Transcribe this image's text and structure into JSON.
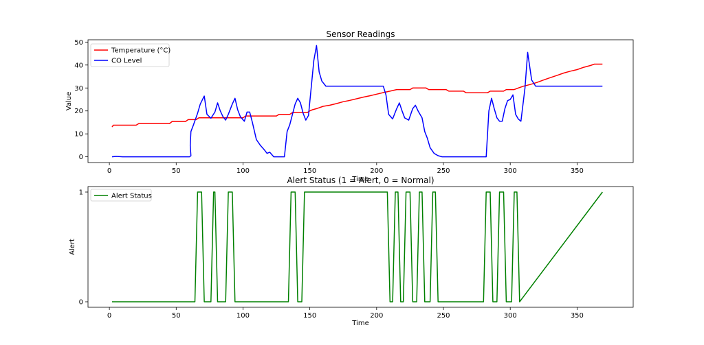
{
  "chart_data": [
    {
      "type": "line",
      "title": "Sensor Readings",
      "xlabel": "Time",
      "ylabel": "Value",
      "xlim": [
        -16,
        392
      ],
      "ylim": [
        -2.5,
        51
      ],
      "xticks": [
        0,
        50,
        100,
        150,
        200,
        250,
        300,
        350
      ],
      "yticks": [
        0,
        10,
        20,
        30,
        40,
        50
      ],
      "grid": false,
      "legend_position": "upper-left",
      "series": [
        {
          "name": "Temperature (°C)",
          "color": "#ff0000",
          "points": [
            [
              2,
              13
            ],
            [
              3,
              13.8
            ],
            [
              20,
              13.8
            ],
            [
              22,
              14.5
            ],
            [
              45,
              14.5
            ],
            [
              47,
              15.4
            ],
            [
              57,
              15.4
            ],
            [
              59,
              16.2
            ],
            [
              65,
              16.2
            ],
            [
              67,
              17
            ],
            [
              100,
              17
            ],
            [
              102,
              17.8
            ],
            [
              125,
              17.8
            ],
            [
              127,
              18.5
            ],
            [
              135,
              18.5
            ],
            [
              137,
              19.3
            ],
            [
              148,
              19.3
            ],
            [
              150,
              20
            ],
            [
              152,
              20.5
            ],
            [
              155,
              21
            ],
            [
              160,
              22
            ],
            [
              165,
              22.5
            ],
            [
              170,
              23.2
            ],
            [
              175,
              24
            ],
            [
              180,
              24.6
            ],
            [
              185,
              25.3
            ],
            [
              190,
              26
            ],
            [
              195,
              26.6
            ],
            [
              200,
              27.3
            ],
            [
              205,
              28
            ],
            [
              210,
              28.6
            ],
            [
              215,
              29.3
            ],
            [
              225,
              29.3
            ],
            [
              227,
              30
            ],
            [
              237,
              30
            ],
            [
              239,
              29.3
            ],
            [
              252,
              29.3
            ],
            [
              254,
              28.6
            ],
            [
              265,
              28.6
            ],
            [
              267,
              27.9
            ],
            [
              283,
              27.9
            ],
            [
              285,
              28.6
            ],
            [
              295,
              28.6
            ],
            [
              297,
              29.3
            ],
            [
              303,
              29.3
            ],
            [
              306,
              30
            ],
            [
              310,
              30.8
            ],
            [
              315,
              31.5
            ],
            [
              320,
              32.4
            ],
            [
              325,
              33.5
            ],
            [
              330,
              34.5
            ],
            [
              335,
              35.5
            ],
            [
              340,
              36.5
            ],
            [
              345,
              37.3
            ],
            [
              350,
              38
            ],
            [
              355,
              39
            ],
            [
              360,
              39.8
            ],
            [
              363,
              40.4
            ],
            [
              369,
              40.4
            ]
          ]
        },
        {
          "name": "CO Level",
          "color": "#0000ff",
          "points": [
            [
              2,
              0
            ],
            [
              5,
              0.2
            ],
            [
              10,
              0
            ],
            [
              40,
              0
            ],
            [
              58,
              0
            ],
            [
              60,
              0
            ],
            [
              61,
              0.5
            ],
            [
              60.5,
              5
            ],
            [
              61,
              11
            ],
            [
              63,
              14
            ],
            [
              66,
              19
            ],
            [
              68,
              23
            ],
            [
              71,
              26.5
            ],
            [
              73,
              18.5
            ],
            [
              76,
              16.8
            ],
            [
              79,
              19.5
            ],
            [
              81,
              23.5
            ],
            [
              83,
              20
            ],
            [
              85,
              17.5
            ],
            [
              87,
              16
            ],
            [
              89,
              18.5
            ],
            [
              92,
              23
            ],
            [
              94,
              25.5
            ],
            [
              96,
              20.5
            ],
            [
              98,
              17.5
            ],
            [
              101,
              15.5
            ],
            [
              103,
              19.5
            ],
            [
              105,
              19.5
            ],
            [
              107,
              15
            ],
            [
              110,
              7.5
            ],
            [
              113,
              5
            ],
            [
              116,
              3
            ],
            [
              118,
              1.5
            ],
            [
              120,
              2
            ],
            [
              123,
              0
            ],
            [
              127,
              0
            ],
            [
              131,
              0
            ],
            [
              133,
              11
            ],
            [
              135,
              14
            ],
            [
              139,
              23
            ],
            [
              141,
              25.5
            ],
            [
              143,
              23.5
            ],
            [
              145,
              19
            ],
            [
              147,
              16
            ],
            [
              149,
              18
            ],
            [
              151,
              30
            ],
            [
              153,
              42
            ],
            [
              155,
              48.5
            ],
            [
              157,
              37
            ],
            [
              159,
              33
            ],
            [
              162,
              30.8
            ],
            [
              164,
              30.8
            ],
            [
              205,
              30.8
            ],
            [
              207,
              27
            ],
            [
              209,
              18.5
            ],
            [
              212,
              16.5
            ],
            [
              215,
              21
            ],
            [
              217,
              23.5
            ],
            [
              219,
              20
            ],
            [
              221,
              17
            ],
            [
              224,
              16
            ],
            [
              227,
              21
            ],
            [
              229,
              22.5
            ],
            [
              231,
              20
            ],
            [
              234,
              17
            ],
            [
              236,
              11
            ],
            [
              238,
              8
            ],
            [
              240,
              4
            ],
            [
              243,
              1.5
            ],
            [
              246,
              0.5
            ],
            [
              249,
              0
            ],
            [
              282,
              0
            ],
            [
              284,
              20
            ],
            [
              286,
              25.5
            ],
            [
              288,
              21
            ],
            [
              290,
              17
            ],
            [
              292,
              15.5
            ],
            [
              294,
              15.5
            ],
            [
              296,
              21
            ],
            [
              298,
              24.5
            ],
            [
              300,
              25
            ],
            [
              302,
              27
            ],
            [
              304,
              18.5
            ],
            [
              306,
              16.5
            ],
            [
              308,
              15.5
            ],
            [
              311,
              30
            ],
            [
              313,
              45.5
            ],
            [
              316,
              33.5
            ],
            [
              319,
              30.8
            ],
            [
              369,
              30.8
            ]
          ]
        }
      ]
    },
    {
      "type": "line",
      "title": "Alert Status (1 = Alert, 0 = Normal)",
      "xlabel": "Time",
      "ylabel": "Alert",
      "xlim": [
        -16,
        392
      ],
      "ylim": [
        -0.05,
        1.05
      ],
      "xticks": [
        0,
        50,
        100,
        150,
        200,
        250,
        300,
        350
      ],
      "yticks": [
        0,
        1
      ],
      "grid": false,
      "legend_position": "upper-left",
      "series": [
        {
          "name": "Alert Status",
          "color": "#008000",
          "points": [
            [
              2,
              0
            ],
            [
              64,
              0
            ],
            [
              66,
              1
            ],
            [
              69,
              1
            ],
            [
              71,
              0
            ],
            [
              76,
              0
            ],
            [
              78,
              1
            ],
            [
              79,
              1
            ],
            [
              81,
              0
            ],
            [
              87,
              0
            ],
            [
              89,
              1
            ],
            [
              92,
              1
            ],
            [
              94,
              0
            ],
            [
              134,
              0
            ],
            [
              136,
              1
            ],
            [
              139,
              1
            ],
            [
              141,
              0
            ],
            [
              144,
              0
            ],
            [
              146,
              1
            ],
            [
              208,
              1
            ],
            [
              210,
              0
            ],
            [
              212,
              0
            ],
            [
              214,
              1
            ],
            [
              216,
              1
            ],
            [
              218,
              0
            ],
            [
              220,
              0
            ],
            [
              222,
              1
            ],
            [
              225,
              1
            ],
            [
              227,
              0
            ],
            [
              230,
              0
            ],
            [
              232,
              1
            ],
            [
              234,
              1
            ],
            [
              236,
              0
            ],
            [
              240,
              0
            ],
            [
              242,
              1
            ],
            [
              244,
              1
            ],
            [
              246,
              0
            ],
            [
              280,
              0
            ],
            [
              282,
              1
            ],
            [
              285,
              1
            ],
            [
              287,
              0
            ],
            [
              290,
              0
            ],
            [
              292,
              1
            ],
            [
              295,
              1
            ],
            [
              297,
              0
            ],
            [
              301,
              0
            ],
            [
              303,
              1
            ],
            [
              305,
              1
            ],
            [
              307,
              0
            ],
            [
              369,
              1
            ]
          ]
        }
      ]
    }
  ]
}
